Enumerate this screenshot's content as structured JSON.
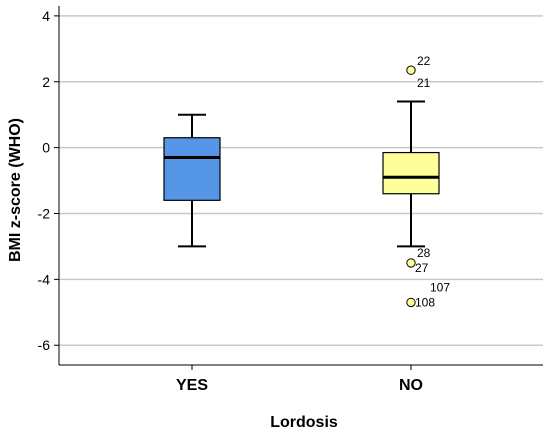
{
  "chart_data": {
    "type": "boxplot",
    "title": "",
    "xlabel": "Lordosis",
    "ylabel": "BMI z-score (WHO)",
    "ylim": [
      -6.6,
      4.3
    ],
    "yticks": [
      4,
      2,
      0,
      -2,
      -4,
      -6
    ],
    "grid": "horizontal",
    "categories": [
      "YES",
      "NO"
    ],
    "boxes": [
      {
        "category": "YES",
        "whisker_low": -3.0,
        "q1": -1.6,
        "median": -0.3,
        "q3": 0.3,
        "whisker_high": 1.0,
        "outliers": [],
        "fill": "#5596e6"
      },
      {
        "category": "NO",
        "whisker_low": -3.0,
        "q1": -1.4,
        "median": -0.9,
        "q3": -0.15,
        "whisker_high": 1.4,
        "outliers": [
          {
            "label": "22",
            "value": 2.35
          },
          {
            "label": "21",
            "value": null
          },
          {
            "label": "28",
            "value": null
          },
          {
            "label": "27",
            "value": -3.5
          },
          {
            "label": "107",
            "value": null
          },
          {
            "label": "108",
            "value": -4.7
          }
        ],
        "fill": "#ffff99"
      }
    ],
    "colors": {
      "outlier_fill": "#ffff99",
      "grid": "#c8c8c8",
      "axis": "#000000"
    }
  }
}
